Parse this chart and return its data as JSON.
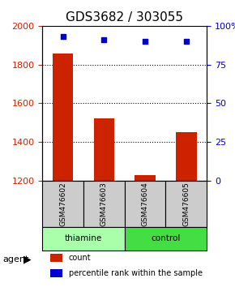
{
  "title": "GDS3682 / 303055",
  "samples": [
    "GSM476602",
    "GSM476603",
    "GSM476604",
    "GSM476605"
  ],
  "counts": [
    1855,
    1520,
    1230,
    1450
  ],
  "percentiles": [
    93,
    91,
    90,
    90
  ],
  "ylim_left": [
    1200,
    2000
  ],
  "ylim_right": [
    0,
    100
  ],
  "yticks_left": [
    1200,
    1400,
    1600,
    1800,
    2000
  ],
  "yticks_right": [
    0,
    25,
    50,
    75,
    100
  ],
  "ytick_right_labels": [
    "0",
    "25",
    "50",
    "75",
    "100%"
  ],
  "bar_color": "#cc2200",
  "dot_color": "#0000cc",
  "groups": [
    {
      "label": "thiamine",
      "indices": [
        0,
        1
      ],
      "color": "#aaffaa"
    },
    {
      "label": "control",
      "indices": [
        2,
        3
      ],
      "color": "#44dd44"
    }
  ],
  "agent_label": "agent",
  "legend_count_label": "count",
  "legend_pct_label": "percentile rank within the sample",
  "bg_plot": "#ffffff",
  "bg_label_row": "#cccccc",
  "grid_color": "#000000",
  "title_fontsize": 11,
  "axis_label_fontsize": 8,
  "tick_fontsize": 8
}
